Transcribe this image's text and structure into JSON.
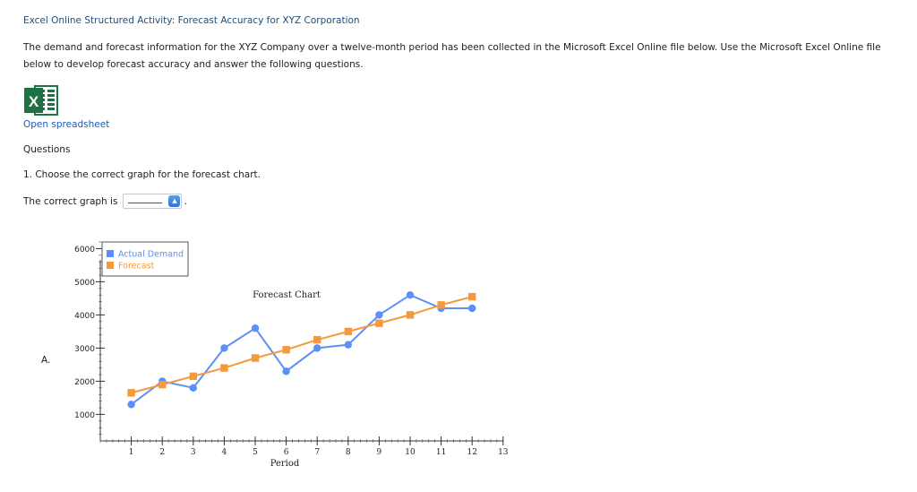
{
  "header": {
    "title": "Excel Online Structured Activity: Forecast Accuracy for XYZ Corporation",
    "intro": "The demand and forecast information for the XYZ Company over a twelve-month period has been collected in the Microsoft Excel Online file below. Use the Microsoft Excel Online file below to develop forecast accuracy and answer the following questions."
  },
  "spreadsheet": {
    "icon": "excel-icon",
    "link_label": "Open spreadsheet"
  },
  "questions": {
    "heading": "Questions",
    "q1_text": "1. Choose the correct graph for the forecast chart.",
    "answer_prompt": "The correct graph is",
    "answer_value": "",
    "answer_end": "."
  },
  "options": [
    {
      "letter": "A."
    }
  ],
  "chart_data": {
    "type": "line",
    "title": "Forecast Chart",
    "xlabel": "Period",
    "ylabel": "",
    "x": [
      1,
      2,
      3,
      4,
      5,
      6,
      7,
      8,
      9,
      10,
      11,
      12
    ],
    "xlim": [
      0,
      13
    ],
    "ylim": [
      200,
      6200
    ],
    "xticks": [
      1,
      2,
      3,
      4,
      5,
      6,
      7,
      8,
      9,
      10,
      11,
      12,
      13
    ],
    "yticks": [
      1000,
      2000,
      3000,
      4000,
      5000,
      6000
    ],
    "grid": false,
    "legend_position": "top-left",
    "series": [
      {
        "name": "Actual Demand",
        "color": "#5b8ff9",
        "marker": "circle",
        "values": [
          1300,
          2000,
          1800,
          3000,
          3600,
          2300,
          3000,
          3100,
          4000,
          4600,
          4200,
          4200
        ]
      },
      {
        "name": "Forecast",
        "color": "#f59a3c",
        "marker": "square",
        "values": [
          1650,
          1900,
          2150,
          2400,
          2700,
          2950,
          3250,
          3500,
          3750,
          4000,
          4300,
          4550
        ]
      }
    ]
  }
}
